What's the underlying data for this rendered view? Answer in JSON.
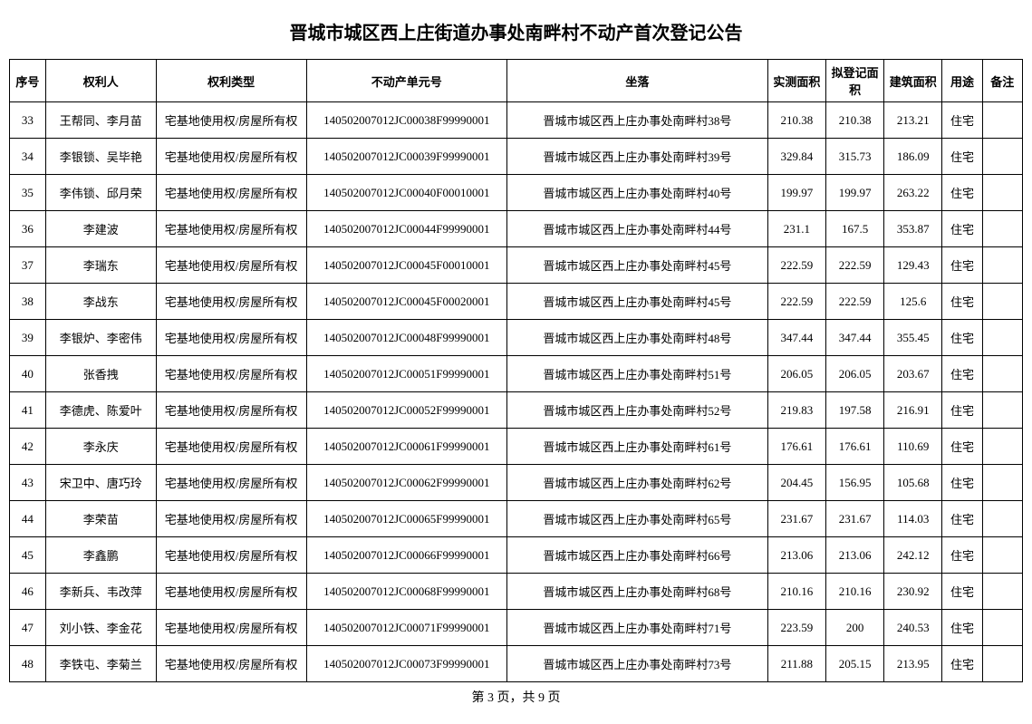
{
  "title": "晋城市城区西上庄街道办事处南畔村不动产首次登记公告",
  "headers": {
    "seq": "序号",
    "owner": "权利人",
    "right_type": "权利类型",
    "unit_no": "不动产单元号",
    "location": "坐落",
    "measured_area": "实测面积",
    "registered_area": "拟登记面积",
    "building_area": "建筑面积",
    "usage": "用途",
    "remark": "备注"
  },
  "right_type_value": "宅基地使用权/房屋所有权",
  "usage_value": "住宅",
  "rows": [
    {
      "seq": "33",
      "owner": "王帮同、李月苗",
      "unit_no": "140502007012JC00038F99990001",
      "location": "晋城市城区西上庄办事处南畔村38号",
      "area1": "210.38",
      "area2": "210.38",
      "area3": "213.21"
    },
    {
      "seq": "34",
      "owner": "李银锁、吴毕艳",
      "unit_no": "140502007012JC00039F99990001",
      "location": "晋城市城区西上庄办事处南畔村39号",
      "area1": "329.84",
      "area2": "315.73",
      "area3": "186.09"
    },
    {
      "seq": "35",
      "owner": "李伟锁、邱月荣",
      "unit_no": "140502007012JC00040F00010001",
      "location": "晋城市城区西上庄办事处南畔村40号",
      "area1": "199.97",
      "area2": "199.97",
      "area3": "263.22"
    },
    {
      "seq": "36",
      "owner": "李建波",
      "unit_no": "140502007012JC00044F99990001",
      "location": "晋城市城区西上庄办事处南畔村44号",
      "area1": "231.1",
      "area2": "167.5",
      "area3": "353.87"
    },
    {
      "seq": "37",
      "owner": "李瑞东",
      "unit_no": "140502007012JC00045F00010001",
      "location": "晋城市城区西上庄办事处南畔村45号",
      "area1": "222.59",
      "area2": "222.59",
      "area3": "129.43"
    },
    {
      "seq": "38",
      "owner": "李战东",
      "unit_no": "140502007012JC00045F00020001",
      "location": "晋城市城区西上庄办事处南畔村45号",
      "area1": "222.59",
      "area2": "222.59",
      "area3": "125.6"
    },
    {
      "seq": "39",
      "owner": "李银炉、李密伟",
      "unit_no": "140502007012JC00048F99990001",
      "location": "晋城市城区西上庄办事处南畔村48号",
      "area1": "347.44",
      "area2": "347.44",
      "area3": "355.45"
    },
    {
      "seq": "40",
      "owner": "张香拽",
      "unit_no": "140502007012JC00051F99990001",
      "location": "晋城市城区西上庄办事处南畔村51号",
      "area1": "206.05",
      "area2": "206.05",
      "area3": "203.67"
    },
    {
      "seq": "41",
      "owner": "李德虎、陈爱叶",
      "unit_no": "140502007012JC00052F99990001",
      "location": "晋城市城区西上庄办事处南畔村52号",
      "area1": "219.83",
      "area2": "197.58",
      "area3": "216.91"
    },
    {
      "seq": "42",
      "owner": "李永庆",
      "unit_no": "140502007012JC00061F99990001",
      "location": "晋城市城区西上庄办事处南畔村61号",
      "area1": "176.61",
      "area2": "176.61",
      "area3": "110.69"
    },
    {
      "seq": "43",
      "owner": "宋卫中、唐巧玲",
      "unit_no": "140502007012JC00062F99990001",
      "location": "晋城市城区西上庄办事处南畔村62号",
      "area1": "204.45",
      "area2": "156.95",
      "area3": "105.68"
    },
    {
      "seq": "44",
      "owner": "李荣苗",
      "unit_no": "140502007012JC00065F99990001",
      "location": "晋城市城区西上庄办事处南畔村65号",
      "area1": "231.67",
      "area2": "231.67",
      "area3": "114.03"
    },
    {
      "seq": "45",
      "owner": "李鑫鹏",
      "unit_no": "140502007012JC00066F99990001",
      "location": "晋城市城区西上庄办事处南畔村66号",
      "area1": "213.06",
      "area2": "213.06",
      "area3": "242.12"
    },
    {
      "seq": "46",
      "owner": "李新兵、韦改萍",
      "unit_no": "140502007012JC00068F99990001",
      "location": "晋城市城区西上庄办事处南畔村68号",
      "area1": "210.16",
      "area2": "210.16",
      "area3": "230.92"
    },
    {
      "seq": "47",
      "owner": "刘小铁、李金花",
      "unit_no": "140502007012JC00071F99990001",
      "location": "晋城市城区西上庄办事处南畔村71号",
      "area1": "223.59",
      "area2": "200",
      "area3": "240.53"
    },
    {
      "seq": "48",
      "owner": "李铁屯、李菊兰",
      "unit_no": "140502007012JC00073F99990001",
      "location": "晋城市城区西上庄办事处南畔村73号",
      "area1": "211.88",
      "area2": "205.15",
      "area3": "213.95"
    }
  ],
  "footer": "第 3 页，共 9 页"
}
